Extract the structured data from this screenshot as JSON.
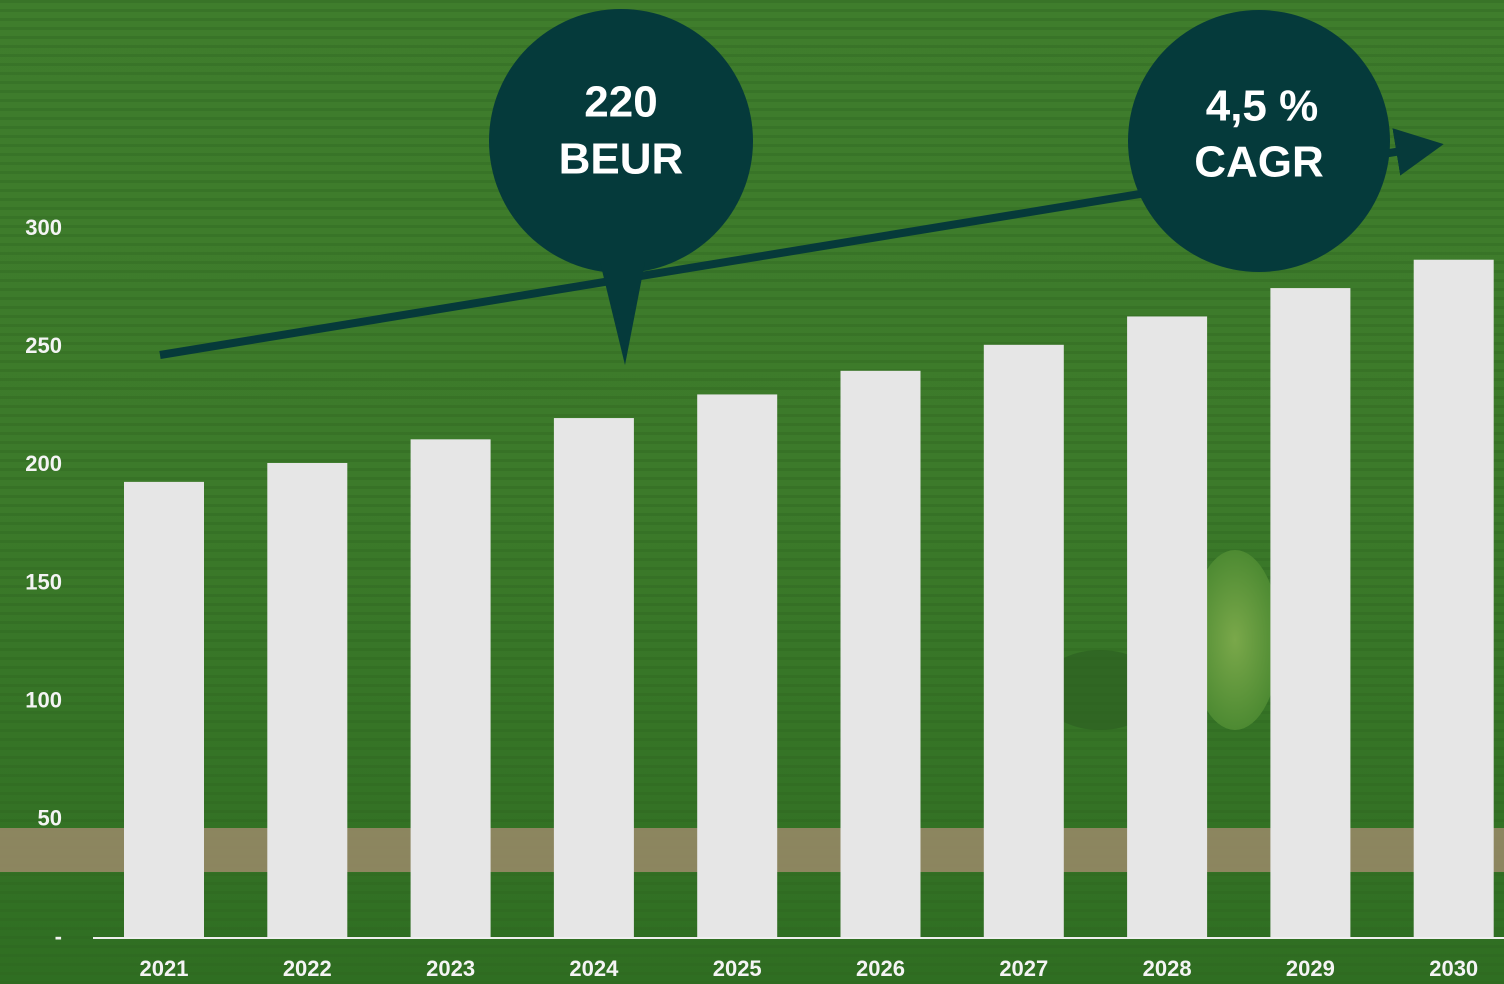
{
  "chart_data": {
    "type": "bar",
    "categories": [
      "2021",
      "2022",
      "2023",
      "2024",
      "2025",
      "2026",
      "2027",
      "2028",
      "2029",
      "2030"
    ],
    "values": [
      193,
      201,
      211,
      220,
      230,
      240,
      251,
      263,
      275,
      287
    ],
    "color": "#e6e6e6",
    "ylim": [
      0,
      300
    ],
    "yticks": [
      {
        "value": 0,
        "label": "-"
      },
      50,
      100,
      150,
      200,
      250,
      300
    ],
    "grid": false,
    "annotations": [
      {
        "lines": [
          "220",
          "BEUR"
        ]
      },
      {
        "lines": [
          "4,5 %",
          "CAGR"
        ]
      }
    ]
  }
}
